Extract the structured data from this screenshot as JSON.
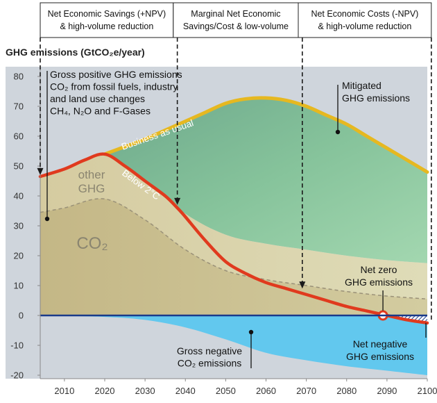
{
  "chart_data": {
    "type": "area",
    "ylabel": "GHG emissions (GtCO₂e/year)",
    "ylim": [
      -20,
      80
    ],
    "xlim": [
      2004,
      2100
    ],
    "yticks": [
      -20,
      -10,
      0,
      10,
      20,
      30,
      40,
      50,
      60,
      70,
      80
    ],
    "xticks": [
      2010,
      2020,
      2030,
      2040,
      2050,
      2060,
      2070,
      2080,
      2090,
      2100
    ],
    "grid": false,
    "bands": [
      {
        "label_line1": "Net Economic Savings (+NPV)",
        "label_line2": "& high-volume reduction",
        "x0": 2004,
        "x1": 2037
      },
      {
        "label_line1": "Marginal Net Economic",
        "label_line2": "Savings/Cost & low-volume",
        "x0": 2037,
        "x1": 2068
      },
      {
        "label_line1": "Net Economic Costs (-NPV)",
        "label_line2": "& high-volume reduction",
        "x0": 2068,
        "x1": 2101
      }
    ],
    "series": [
      {
        "name": "Business as usual",
        "color": "#e6b820",
        "x": [
          2020,
          2025,
          2030,
          2035,
          2040,
          2045,
          2050,
          2055,
          2060,
          2065,
          2070,
          2075,
          2080,
          2085,
          2090,
          2095,
          2100
        ],
        "y": [
          54,
          56.5,
          59,
          62,
          65,
          68,
          71,
          72.5,
          72.8,
          72,
          70,
          67,
          64,
          60,
          56,
          52,
          48
        ]
      },
      {
        "name": "Below 2°C",
        "color": "#e03a1e",
        "x": [
          2004,
          2010,
          2015,
          2020,
          2025,
          2030,
          2035,
          2038,
          2040,
          2045,
          2050,
          2055,
          2060,
          2065,
          2070,
          2075,
          2080,
          2085,
          2090,
          2095,
          2100
        ],
        "y": [
          46.5,
          49,
          52,
          54,
          50,
          45,
          40,
          36,
          33,
          25,
          18,
          14,
          11,
          9,
          7,
          5,
          3,
          1.5,
          0,
          -1.5,
          -2.5
        ]
      },
      {
        "name": "Gross positive GHG emissions",
        "color": "#d8d0a4",
        "x": [
          2004,
          2010,
          2020,
          2030,
          2040,
          2050,
          2060,
          2070,
          2080,
          2090,
          2100
        ],
        "y": [
          46.5,
          49,
          54,
          45,
          34,
          27,
          24,
          22,
          20,
          18.5,
          17.5
        ]
      },
      {
        "name": "CO₂",
        "color": "#a49d82",
        "x": [
          2004,
          2010,
          2020,
          2030,
          2040,
          2050,
          2060,
          2070,
          2080,
          2090,
          2100
        ],
        "y": [
          34.5,
          36,
          39,
          32,
          22,
          15,
          12,
          10,
          8,
          6.5,
          5.5
        ]
      },
      {
        "name": "Gross negative CO₂ emissions",
        "color": "#62c8ee",
        "x": [
          2004,
          2020,
          2030,
          2040,
          2050,
          2060,
          2070,
          2080,
          2090,
          2100
        ],
        "y": [
          0,
          -0.5,
          -1.5,
          -4,
          -8,
          -12.5,
          -15,
          -17,
          -18.5,
          -20
        ]
      }
    ],
    "net_zero_year": 2089,
    "arrows": [
      {
        "x": 2004,
        "y": 47
      },
      {
        "x": 2038,
        "y": 37
      },
      {
        "x": 2069,
        "y": 9
      }
    ],
    "annotations": {
      "gross_positive": [
        "Gross positive GHG emissions",
        "CO₂ from fossil fuels, industry",
        "and land use changes",
        "CH₄, N₂O and F-Gases"
      ],
      "mitigated": [
        "Mitigated",
        "GHG emissions"
      ],
      "net_zero": [
        "Net zero",
        "GHG emissions"
      ],
      "net_negative": [
        "Net negative",
        "GHG emissions"
      ],
      "gross_negative": [
        "Gross negative",
        "CO₂ emissions"
      ],
      "other_ghg": [
        "other",
        "GHG"
      ],
      "co2_region": "CO₂"
    },
    "colors": {
      "plot_bg": "#cfd5dc",
      "mitigated_top": "#94cfa4",
      "mitigated_bottom": "#6aa88a",
      "gross_positive_fill": "#d8d0a4",
      "co2_fill": "#c8bc8a",
      "negative_fill": "#62c8ee",
      "bau": "#e6b820",
      "below2": "#e03a1e"
    }
  }
}
